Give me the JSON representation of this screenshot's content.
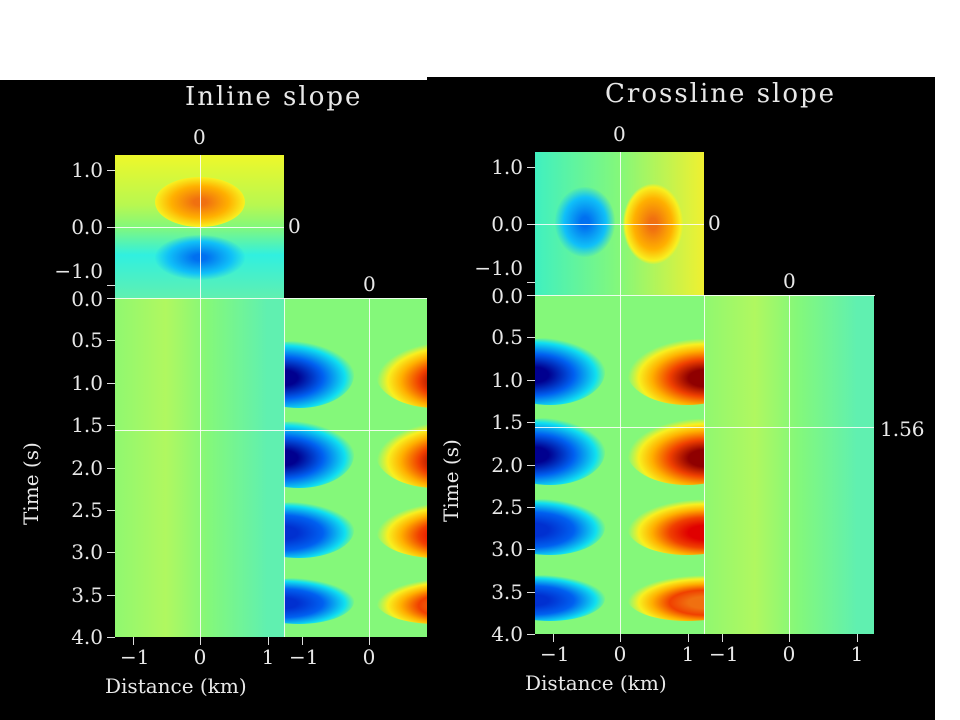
{
  "chart_data": {
    "type": "heatmap",
    "panels": [
      {
        "title": "Inline slope",
        "active_section": "side",
        "top_box_labels": {
          "x_top": "0",
          "y_right": "0"
        },
        "side_label_top": "0",
        "side_label_right": "",
        "top_yticks": [
          "1.0",
          "0.0",
          "−1.0"
        ],
        "yticks": [
          "0.0",
          "0.5",
          "1.0",
          "1.5",
          "2.0",
          "2.5",
          "3.0",
          "3.5",
          "4.0"
        ],
        "xticks_main": [
          "−1",
          "0",
          "1"
        ],
        "xticks_side": [
          "−1",
          "0"
        ],
        "ylabel": "Time (s)",
        "xlabel": "Distance (km)",
        "top_blob": "vertical"
      },
      {
        "title": "Crossline slope",
        "active_section": "main",
        "top_box_labels": {
          "x_top": "0",
          "y_right": "0"
        },
        "side_label_top": "0",
        "side_label_right": "1.56",
        "top_yticks": [
          "1.0",
          "0.0",
          "−1.0"
        ],
        "yticks": [
          "0.0",
          "0.5",
          "1.0",
          "1.5",
          "2.0",
          "2.5",
          "3.0",
          "3.5",
          "4.0"
        ],
        "xticks_main": [
          "−1",
          "0",
          "1"
        ],
        "xticks_side": [
          "−1",
          "0",
          "1"
        ],
        "ylabel": "Time (s)",
        "xlabel": "Distance (km)",
        "top_blob": "horizontal"
      }
    ],
    "time_range_s": [
      0,
      4
    ],
    "distance_range_km": [
      -1.25,
      1.25
    ],
    "crosshair": {
      "inline_km": 0,
      "crossline_km": 0,
      "time_s": 1.56
    },
    "events": [
      {
        "t0": 0.6,
        "t1": 1.2,
        "strength": 1.0
      },
      {
        "t0": 1.55,
        "t1": 2.15,
        "strength": 1.0
      },
      {
        "t0": 2.5,
        "t1": 2.97,
        "strength": 0.8
      },
      {
        "t0": 3.4,
        "t1": 3.75,
        "strength": 0.55
      }
    ],
    "colormap": {
      "neg": "#00008f",
      "mid": "#84f87a",
      "pos": "#8f0000"
    }
  }
}
